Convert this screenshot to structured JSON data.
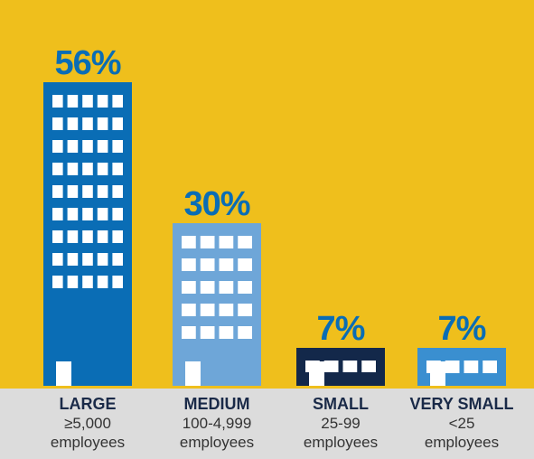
{
  "colors": {
    "background": "#efbf1c",
    "ground": "#dcdcdc",
    "percent_text": "#0a6db5",
    "label_text": "#1a2a48"
  },
  "chart_data": {
    "type": "bar",
    "categories": [
      "LARGE",
      "MEDIUM",
      "SMALL",
      "VERY SMALL"
    ],
    "values": [
      56,
      30,
      7,
      7
    ],
    "value_labels": [
      "56%",
      "30%",
      "7%",
      "7%"
    ],
    "sublabels": [
      "≥5,000",
      "100-4,999",
      "25-99",
      "<25"
    ],
    "unit_label": "employees",
    "bar_colors": [
      "#0a6db5",
      "#6ea6d8",
      "#13284a",
      "#3a8fd0"
    ],
    "ylim": [
      0,
      60
    ],
    "title": "",
    "xlabel": "",
    "ylabel": ""
  }
}
